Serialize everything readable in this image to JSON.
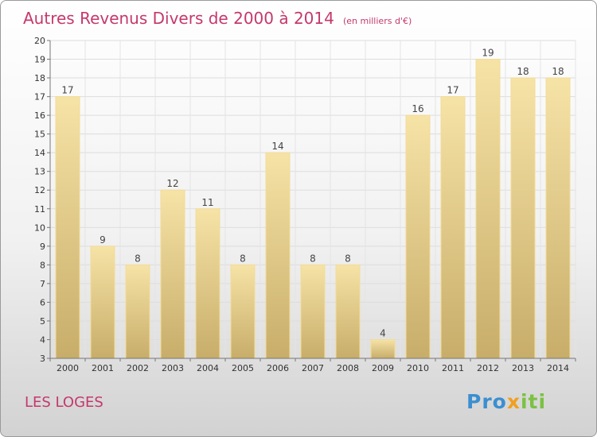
{
  "header": {
    "title": "Autres Revenus Divers de 2000 à 2014",
    "subtitle": "(en milliers d'€)"
  },
  "footer": {
    "place": "LES LOGES",
    "logo_text": "Proxiti"
  },
  "colors": {
    "title": "#c5386c",
    "bar_light": "#f6e3a6",
    "bar_dark": "#c8ad6a"
  },
  "chart_data": {
    "type": "bar",
    "title": "Autres Revenus Divers de 2000 à 2014",
    "subtitle": "(en milliers d'€)",
    "categories": [
      "2000",
      "2001",
      "2002",
      "2003",
      "2004",
      "2005",
      "2006",
      "2007",
      "2008",
      "2009",
      "2010",
      "2011",
      "2012",
      "2013",
      "2014"
    ],
    "values": [
      17,
      9,
      8,
      12,
      11,
      8,
      14,
      8,
      8,
      4,
      16,
      17,
      19,
      18,
      18
    ],
    "ylim": [
      3,
      20
    ],
    "yticks": [
      3,
      4,
      5,
      6,
      7,
      8,
      9,
      10,
      11,
      12,
      13,
      14,
      15,
      16,
      17,
      18,
      19,
      20
    ],
    "grid": true,
    "data_labels": true
  }
}
